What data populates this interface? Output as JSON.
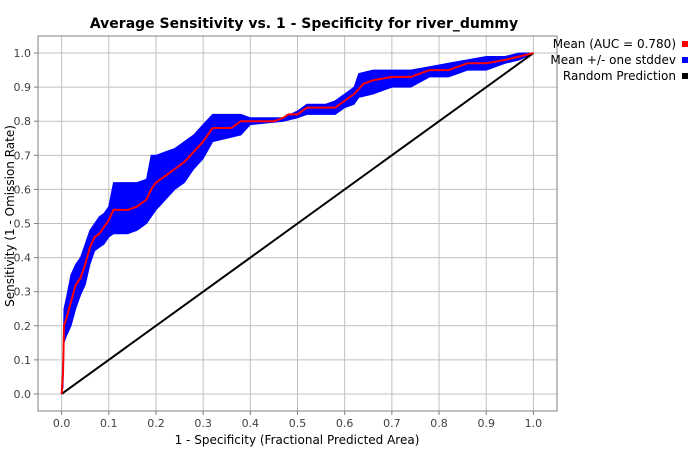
{
  "chart_data": {
    "type": "line",
    "title": "Average Sensitivity vs. 1 - Specificity for river_dummy",
    "xlabel": "1 - Specificity (Fractional Predicted Area)",
    "ylabel": "Sensitivity (1 - Omission Rate)",
    "xlim": [
      0,
      1
    ],
    "ylim": [
      0,
      1
    ],
    "grid": true,
    "legend_position": "top-right outside",
    "x_ticks": [
      "0.0",
      "0.1",
      "0.2",
      "0.3",
      "0.4",
      "0.5",
      "0.6",
      "0.7",
      "0.8",
      "0.9",
      "1.0"
    ],
    "y_ticks": [
      "0.0",
      "0.1",
      "0.2",
      "0.3",
      "0.4",
      "0.5",
      "0.6",
      "0.7",
      "0.8",
      "0.9",
      "1.0"
    ],
    "colors": {
      "mean": "#ff0000",
      "band": "#0000ff",
      "random": "#000000",
      "grid": "#c0c0c0",
      "axis": "#000000"
    },
    "legend": [
      {
        "label": "Mean (AUC = 0.780)",
        "color": "#ff0000"
      },
      {
        "label": "Mean +/- one stddev",
        "color": "#0000ff"
      },
      {
        "label": "Random Prediction",
        "color": "#000000"
      }
    ],
    "series": [
      {
        "name": "Mean (AUC = 0.780)",
        "points": [
          [
            0,
            0
          ],
          [
            0.003,
            0.06
          ],
          [
            0.005,
            0.2
          ],
          [
            0.01,
            0.22
          ],
          [
            0.02,
            0.27
          ],
          [
            0.03,
            0.32
          ],
          [
            0.04,
            0.34
          ],
          [
            0.05,
            0.38
          ],
          [
            0.06,
            0.43
          ],
          [
            0.07,
            0.46
          ],
          [
            0.08,
            0.47
          ],
          [
            0.09,
            0.49
          ],
          [
            0.1,
            0.51
          ],
          [
            0.11,
            0.54
          ],
          [
            0.12,
            0.54
          ],
          [
            0.14,
            0.54
          ],
          [
            0.16,
            0.55
          ],
          [
            0.18,
            0.57
          ],
          [
            0.19,
            0.6
          ],
          [
            0.2,
            0.62
          ],
          [
            0.22,
            0.64
          ],
          [
            0.24,
            0.66
          ],
          [
            0.26,
            0.68
          ],
          [
            0.28,
            0.71
          ],
          [
            0.3,
            0.74
          ],
          [
            0.32,
            0.78
          ],
          [
            0.34,
            0.78
          ],
          [
            0.36,
            0.78
          ],
          [
            0.38,
            0.8
          ],
          [
            0.4,
            0.8
          ],
          [
            0.45,
            0.8
          ],
          [
            0.47,
            0.81
          ],
          [
            0.48,
            0.82
          ],
          [
            0.5,
            0.82
          ],
          [
            0.52,
            0.84
          ],
          [
            0.56,
            0.84
          ],
          [
            0.58,
            0.84
          ],
          [
            0.6,
            0.86
          ],
          [
            0.62,
            0.88
          ],
          [
            0.64,
            0.91
          ],
          [
            0.66,
            0.92
          ],
          [
            0.7,
            0.93
          ],
          [
            0.74,
            0.93
          ],
          [
            0.78,
            0.95
          ],
          [
            0.82,
            0.95
          ],
          [
            0.86,
            0.97
          ],
          [
            0.9,
            0.97
          ],
          [
            0.94,
            0.98
          ],
          [
            0.97,
            0.99
          ],
          [
            1,
            1
          ]
        ]
      },
      {
        "name": "Mean +/- one stddev",
        "upper": [
          [
            0,
            0
          ],
          [
            0.003,
            0.1
          ],
          [
            0.005,
            0.25
          ],
          [
            0.01,
            0.28
          ],
          [
            0.02,
            0.35
          ],
          [
            0.03,
            0.38
          ],
          [
            0.04,
            0.4
          ],
          [
            0.05,
            0.44
          ],
          [
            0.06,
            0.48
          ],
          [
            0.07,
            0.5
          ],
          [
            0.08,
            0.52
          ],
          [
            0.09,
            0.53
          ],
          [
            0.1,
            0.55
          ],
          [
            0.11,
            0.62
          ],
          [
            0.14,
            0.62
          ],
          [
            0.16,
            0.62
          ],
          [
            0.18,
            0.63
          ],
          [
            0.19,
            0.7
          ],
          [
            0.2,
            0.7
          ],
          [
            0.22,
            0.71
          ],
          [
            0.24,
            0.72
          ],
          [
            0.26,
            0.74
          ],
          [
            0.28,
            0.76
          ],
          [
            0.3,
            0.79
          ],
          [
            0.32,
            0.82
          ],
          [
            0.38,
            0.82
          ],
          [
            0.4,
            0.81
          ],
          [
            0.47,
            0.81
          ],
          [
            0.5,
            0.83
          ],
          [
            0.52,
            0.85
          ],
          [
            0.56,
            0.85
          ],
          [
            0.58,
            0.86
          ],
          [
            0.6,
            0.88
          ],
          [
            0.62,
            0.9
          ],
          [
            0.63,
            0.94
          ],
          [
            0.66,
            0.95
          ],
          [
            0.7,
            0.95
          ],
          [
            0.74,
            0.95
          ],
          [
            0.78,
            0.96
          ],
          [
            0.82,
            0.97
          ],
          [
            0.86,
            0.98
          ],
          [
            0.9,
            0.99
          ],
          [
            0.94,
            0.99
          ],
          [
            0.97,
            1
          ],
          [
            1,
            1
          ]
        ],
        "lower": [
          [
            0,
            0
          ],
          [
            0.003,
            0.02
          ],
          [
            0.005,
            0.15
          ],
          [
            0.01,
            0.17
          ],
          [
            0.02,
            0.2
          ],
          [
            0.03,
            0.25
          ],
          [
            0.04,
            0.29
          ],
          [
            0.05,
            0.32
          ],
          [
            0.06,
            0.38
          ],
          [
            0.07,
            0.42
          ],
          [
            0.08,
            0.43
          ],
          [
            0.09,
            0.44
          ],
          [
            0.1,
            0.46
          ],
          [
            0.11,
            0.47
          ],
          [
            0.14,
            0.47
          ],
          [
            0.16,
            0.48
          ],
          [
            0.18,
            0.5
          ],
          [
            0.19,
            0.52
          ],
          [
            0.2,
            0.54
          ],
          [
            0.22,
            0.57
          ],
          [
            0.24,
            0.6
          ],
          [
            0.26,
            0.62
          ],
          [
            0.28,
            0.66
          ],
          [
            0.3,
            0.69
          ],
          [
            0.32,
            0.74
          ],
          [
            0.38,
            0.76
          ],
          [
            0.4,
            0.79
          ],
          [
            0.47,
            0.8
          ],
          [
            0.5,
            0.81
          ],
          [
            0.52,
            0.82
          ],
          [
            0.56,
            0.82
          ],
          [
            0.58,
            0.82
          ],
          [
            0.6,
            0.84
          ],
          [
            0.62,
            0.85
          ],
          [
            0.63,
            0.87
          ],
          [
            0.66,
            0.88
          ],
          [
            0.7,
            0.9
          ],
          [
            0.74,
            0.9
          ],
          [
            0.78,
            0.93
          ],
          [
            0.82,
            0.93
          ],
          [
            0.86,
            0.95
          ],
          [
            0.9,
            0.95
          ],
          [
            0.94,
            0.97
          ],
          [
            0.97,
            0.98
          ],
          [
            1,
            1
          ]
        ]
      },
      {
        "name": "Random Prediction",
        "points": [
          [
            0,
            0
          ],
          [
            1,
            1
          ]
        ]
      }
    ]
  }
}
